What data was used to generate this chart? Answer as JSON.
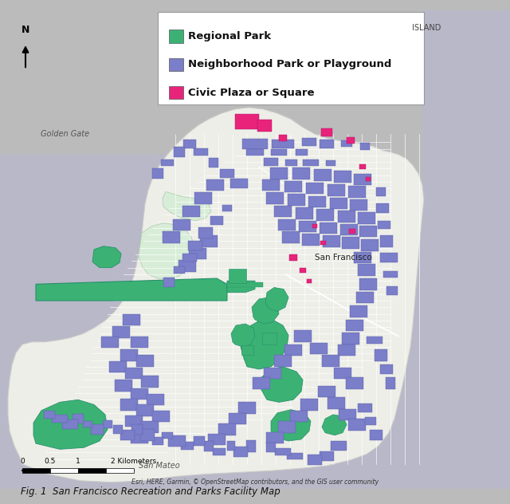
{
  "title": "Fig. 1  San Francisco Recreation and Parks Facility Map",
  "legend_items": [
    {
      "label": "Regional Park",
      "color": "#3BB274"
    },
    {
      "label": "Neighborhood Park or Playground",
      "color": "#7B7EC8"
    },
    {
      "label": "Civic Plaza or Square",
      "color": "#E8237A"
    }
  ],
  "scale_label": "0 0.5 1       2 Kilometers",
  "attribution": "Esri, HERE, Garmin, © OpenStreetMap contributors, and the GIS user community",
  "north_label": "N",
  "island_label": "ISLAND",
  "golden_gate_label": "Golden Gate",
  "san_mateo_label": "San Mateo",
  "sf_label": "San Francisco",
  "map_bg": "#C8C8D0",
  "land_color": "#EEEEE8",
  "presidio_color": "#DDEEDD",
  "road_color": "#FFFFFF",
  "water_color": "#C8C8D0",
  "fig_width": 6.4,
  "fig_height": 6.32,
  "dpi": 100
}
